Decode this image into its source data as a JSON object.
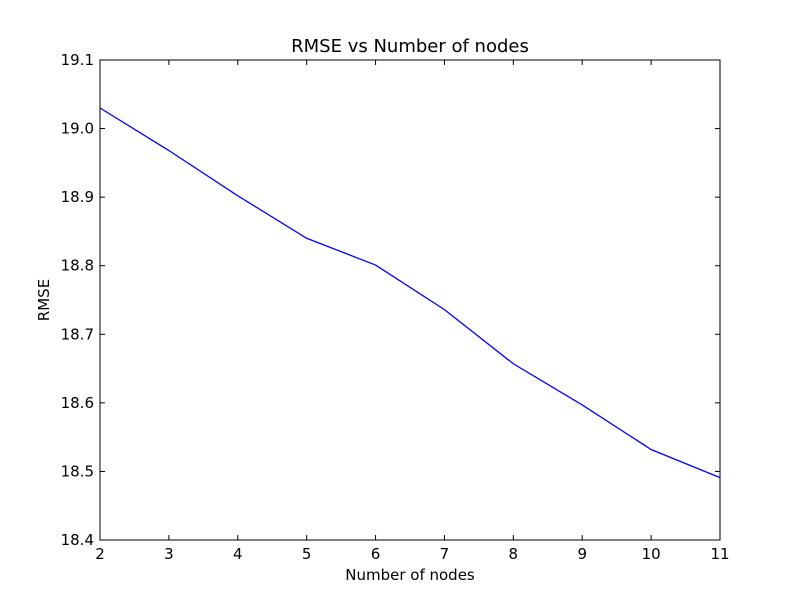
{
  "chart_data": {
    "type": "line",
    "title": "RMSE vs Number of nodes",
    "xlabel": "Number of nodes",
    "ylabel": "RMSE",
    "xlim": [
      2,
      11
    ],
    "ylim": [
      18.4,
      19.1
    ],
    "xticks": [
      2,
      3,
      4,
      5,
      6,
      7,
      8,
      9,
      10,
      11
    ],
    "yticks": [
      18.4,
      18.5,
      18.6,
      18.7,
      18.8,
      18.9,
      19.0,
      19.1
    ],
    "ytick_labels": [
      "18.4",
      "18.5",
      "18.6",
      "18.7",
      "18.8",
      "18.9",
      "19.0",
      "19.1"
    ],
    "grid": false,
    "line_color": "#0000ff",
    "series": [
      {
        "x": [
          2,
          3,
          4,
          5,
          6,
          7,
          8,
          9,
          10,
          11
        ],
        "y": [
          19.03,
          18.968,
          18.902,
          18.84,
          18.801,
          18.736,
          18.657,
          18.597,
          18.532,
          18.491
        ]
      }
    ]
  }
}
